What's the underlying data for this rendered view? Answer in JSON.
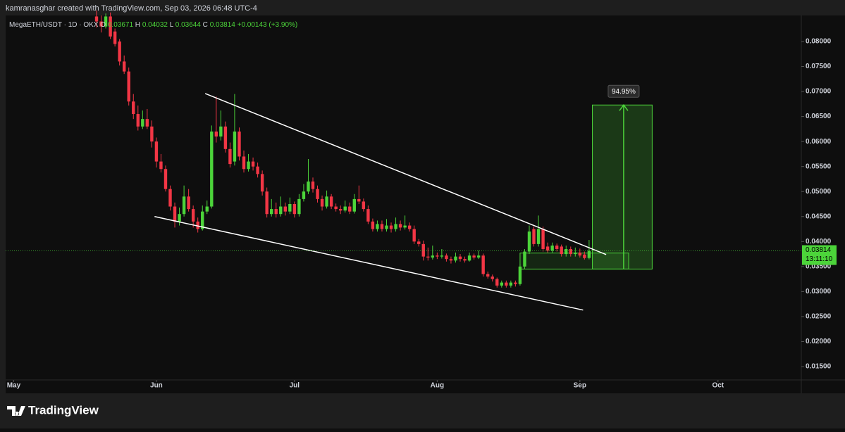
{
  "chart_data": {
    "type": "candlestick",
    "header": "kamranasghar created with TradingView.com, Sep 03, 2026 06:48 UTC-4",
    "symbol": "MegaETH/USDT · 1D · OKX",
    "ohlc_labels": [
      "O",
      "H",
      "L",
      "C"
    ],
    "change": "+0.00143 (+3.90%)",
    "countdown": "13:11:10",
    "target_label": "94.95%",
    "brand": "TradingView",
    "up_color": "#4cd43a",
    "down_color": "#f23645",
    "xlim": [
      -19.75,
      153.1
    ],
    "xticks": [
      {
        "value": -18,
        "label": "May"
      },
      {
        "value": 13,
        "label": "Jun"
      },
      {
        "value": 43,
        "label": "Jul"
      },
      {
        "value": 74,
        "label": "Aug"
      },
      {
        "value": 105,
        "label": "Sep"
      },
      {
        "value": 135,
        "label": "Oct"
      }
    ],
    "ylim": [
      0.01233,
      0.0852
    ],
    "yticks": [
      {
        "value": 0.08,
        "label": "0.08000"
      },
      {
        "value": 0.075,
        "label": "0.07500"
      },
      {
        "value": 0.07,
        "label": "0.07000"
      },
      {
        "value": 0.065,
        "label": "0.06500"
      },
      {
        "value": 0.06,
        "label": "0.06000"
      },
      {
        "value": 0.055,
        "label": "0.05500"
      },
      {
        "value": 0.05,
        "label": "0.05000"
      },
      {
        "value": 0.045,
        "label": "0.04500"
      },
      {
        "value": 0.04,
        "label": "0.04000"
      },
      {
        "value": 0.035,
        "label": "0.03500"
      },
      {
        "value": 0.03,
        "label": "0.03000"
      },
      {
        "value": 0.025,
        "label": "0.02500"
      },
      {
        "value": 0.02,
        "label": "0.02000"
      },
      {
        "value": 0.015,
        "label": "0.01500"
      }
    ],
    "candles": [
      [
        0.085,
        0.0862,
        0.0828,
        0.084
      ],
      [
        0.084,
        0.0852,
        0.0818,
        0.083
      ],
      [
        0.083,
        0.0856,
        0.0826,
        0.085
      ],
      [
        0.085,
        0.0858,
        0.0805,
        0.081
      ],
      [
        0.082,
        0.0826,
        0.079,
        0.0795
      ],
      [
        0.08,
        0.0805,
        0.0752,
        0.076
      ],
      [
        0.076,
        0.0772,
        0.0735,
        0.074
      ],
      [
        0.074,
        0.0748,
        0.0672,
        0.068
      ],
      [
        0.068,
        0.0695,
        0.0645,
        0.0655
      ],
      [
        0.0655,
        0.0672,
        0.0622,
        0.063
      ],
      [
        0.063,
        0.0662,
        0.0625,
        0.0645
      ],
      [
        0.0645,
        0.0665,
        0.0625,
        0.063
      ],
      [
        0.063,
        0.0642,
        0.0588,
        0.06
      ],
      [
        0.06,
        0.0608,
        0.0548,
        0.056
      ],
      [
        0.056,
        0.0575,
        0.0538,
        0.0545
      ],
      [
        0.0545,
        0.0552,
        0.05,
        0.0505
      ],
      [
        0.0505,
        0.0512,
        0.0462,
        0.047
      ],
      [
        0.047,
        0.0478,
        0.0428,
        0.044
      ],
      [
        0.044,
        0.0468,
        0.0432,
        0.0455
      ],
      [
        0.0455,
        0.0512,
        0.045,
        0.049
      ],
      [
        0.049,
        0.0505,
        0.046,
        0.0465
      ],
      [
        0.0465,
        0.0472,
        0.0428,
        0.044
      ],
      [
        0.044,
        0.0448,
        0.0418,
        0.0425
      ],
      [
        0.0425,
        0.0472,
        0.0422,
        0.046
      ],
      [
        0.046,
        0.0482,
        0.0455,
        0.047
      ],
      [
        0.047,
        0.0632,
        0.0466,
        0.062
      ],
      [
        0.062,
        0.069,
        0.0598,
        0.061
      ],
      [
        0.061,
        0.0662,
        0.0602,
        0.063
      ],
      [
        0.063,
        0.064,
        0.0578,
        0.0585
      ],
      [
        0.0585,
        0.0598,
        0.0548,
        0.0555
      ],
      [
        0.056,
        0.0695,
        0.0552,
        0.062
      ],
      [
        0.062,
        0.0628,
        0.0562,
        0.057
      ],
      [
        0.057,
        0.0582,
        0.0538,
        0.0545
      ],
      [
        0.0545,
        0.0575,
        0.054,
        0.056
      ],
      [
        0.056,
        0.0568,
        0.0542,
        0.055
      ],
      [
        0.055,
        0.0558,
        0.0528,
        0.0535
      ],
      [
        0.0535,
        0.0542,
        0.0492,
        0.05
      ],
      [
        0.05,
        0.0508,
        0.0448,
        0.0455
      ],
      [
        0.0455,
        0.0485,
        0.045,
        0.0465
      ],
      [
        0.0465,
        0.0478,
        0.0448,
        0.0455
      ],
      [
        0.0455,
        0.049,
        0.045,
        0.047
      ],
      [
        0.047,
        0.0478,
        0.0452,
        0.046
      ],
      [
        0.046,
        0.0488,
        0.0455,
        0.0475
      ],
      [
        0.0475,
        0.048,
        0.0448,
        0.0455
      ],
      [
        0.0455,
        0.0495,
        0.045,
        0.0485
      ],
      [
        0.0485,
        0.0515,
        0.048,
        0.05
      ],
      [
        0.05,
        0.0565,
        0.0495,
        0.052
      ],
      [
        0.052,
        0.0528,
        0.0498,
        0.0505
      ],
      [
        0.0505,
        0.0512,
        0.0478,
        0.0485
      ],
      [
        0.0485,
        0.0492,
        0.0462,
        0.047
      ],
      [
        0.047,
        0.0502,
        0.0466,
        0.049
      ],
      [
        0.049,
        0.0495,
        0.0465,
        0.047
      ],
      [
        0.047,
        0.0476,
        0.046,
        0.0465
      ],
      [
        0.0465,
        0.0472,
        0.0455,
        0.0462
      ],
      [
        0.0462,
        0.0482,
        0.0458,
        0.047
      ],
      [
        0.047,
        0.0478,
        0.0455,
        0.046
      ],
      [
        0.046,
        0.0495,
        0.0456,
        0.0485
      ],
      [
        0.0485,
        0.0512,
        0.0475,
        0.048
      ],
      [
        0.048,
        0.0486,
        0.046,
        0.0465
      ],
      [
        0.0465,
        0.0472,
        0.0435,
        0.044
      ],
      [
        0.044,
        0.0446,
        0.042,
        0.0425
      ],
      [
        0.0425,
        0.0442,
        0.042,
        0.0435
      ],
      [
        0.0435,
        0.0442,
        0.042,
        0.0425
      ],
      [
        0.0425,
        0.0445,
        0.042,
        0.0432
      ],
      [
        0.0432,
        0.0438,
        0.0418,
        0.0425
      ],
      [
        0.0425,
        0.0448,
        0.042,
        0.0435
      ],
      [
        0.0435,
        0.0442,
        0.0422,
        0.0428
      ],
      [
        0.0428,
        0.0452,
        0.0424,
        0.0432
      ],
      [
        0.0432,
        0.0438,
        0.042,
        0.0425
      ],
      [
        0.0425,
        0.0432,
        0.0395,
        0.04
      ],
      [
        0.04,
        0.0405,
        0.039,
        0.0395
      ],
      [
        0.0395,
        0.0402,
        0.0362,
        0.037
      ],
      [
        0.037,
        0.0388,
        0.0362,
        0.0368
      ],
      [
        0.0368,
        0.0392,
        0.0364,
        0.0372
      ],
      [
        0.0372,
        0.0378,
        0.0365,
        0.037
      ],
      [
        0.037,
        0.0385,
        0.0366,
        0.0372
      ],
      [
        0.0372,
        0.0376,
        0.036,
        0.0365
      ],
      [
        0.0365,
        0.037,
        0.0356,
        0.0362
      ],
      [
        0.0362,
        0.0378,
        0.0358,
        0.037
      ],
      [
        0.037,
        0.0375,
        0.036,
        0.0365
      ],
      [
        0.0365,
        0.037,
        0.0358,
        0.0362
      ],
      [
        0.0362,
        0.0378,
        0.036,
        0.0372
      ],
      [
        0.0372,
        0.0376,
        0.0364,
        0.0368
      ],
      [
        0.0368,
        0.0382,
        0.0365,
        0.0372
      ],
      [
        0.0372,
        0.0376,
        0.033,
        0.0335
      ],
      [
        0.0335,
        0.034,
        0.0326,
        0.033
      ],
      [
        0.033,
        0.0334,
        0.032,
        0.0325
      ],
      [
        0.0325,
        0.0328,
        0.0308,
        0.0312
      ],
      [
        0.0312,
        0.0322,
        0.0308,
        0.0318
      ],
      [
        0.0318,
        0.0322,
        0.0308,
        0.0312
      ],
      [
        0.0312,
        0.0322,
        0.0308,
        0.0318
      ],
      [
        0.0318,
        0.0322,
        0.031,
        0.0315
      ],
      [
        0.0315,
        0.0355,
        0.0312,
        0.035
      ],
      [
        0.035,
        0.0385,
        0.0345,
        0.038
      ],
      [
        0.038,
        0.0432,
        0.0375,
        0.042
      ],
      [
        0.0425,
        0.043,
        0.039,
        0.0395
      ],
      [
        0.0395,
        0.0452,
        0.039,
        0.0425
      ],
      [
        0.0425,
        0.043,
        0.038,
        0.0385
      ],
      [
        0.039,
        0.0398,
        0.0378,
        0.0382
      ],
      [
        0.0382,
        0.0398,
        0.0378,
        0.0392
      ],
      [
        0.0392,
        0.0396,
        0.038,
        0.0385
      ],
      [
        0.039,
        0.0394,
        0.037,
        0.0375
      ],
      [
        0.0375,
        0.0392,
        0.037,
        0.0385
      ],
      [
        0.0385,
        0.039,
        0.037,
        0.0375
      ],
      [
        0.0375,
        0.0388,
        0.037,
        0.0378
      ],
      [
        0.0378,
        0.0386,
        0.0368,
        0.0372
      ],
      [
        0.0374,
        0.038,
        0.0364,
        0.0367
      ],
      [
        0.03671,
        0.04032,
        0.03644,
        0.03814
      ]
    ],
    "trendlines": [
      {
        "x": [
          23.6,
          110.7
        ],
        "y": [
          0.0696,
          0.0374
        ]
      },
      {
        "x": [
          12.6,
          105.7
        ],
        "y": [
          0.045,
          0.0263
        ]
      }
    ],
    "range_box": {
      "x": [
        92,
        115.6
      ],
      "y": [
        0.0377,
        0.0345
      ]
    },
    "position": {
      "x": [
        107.7,
        120.7
      ],
      "entry": 0.0345,
      "target": 0.0673
    }
  }
}
